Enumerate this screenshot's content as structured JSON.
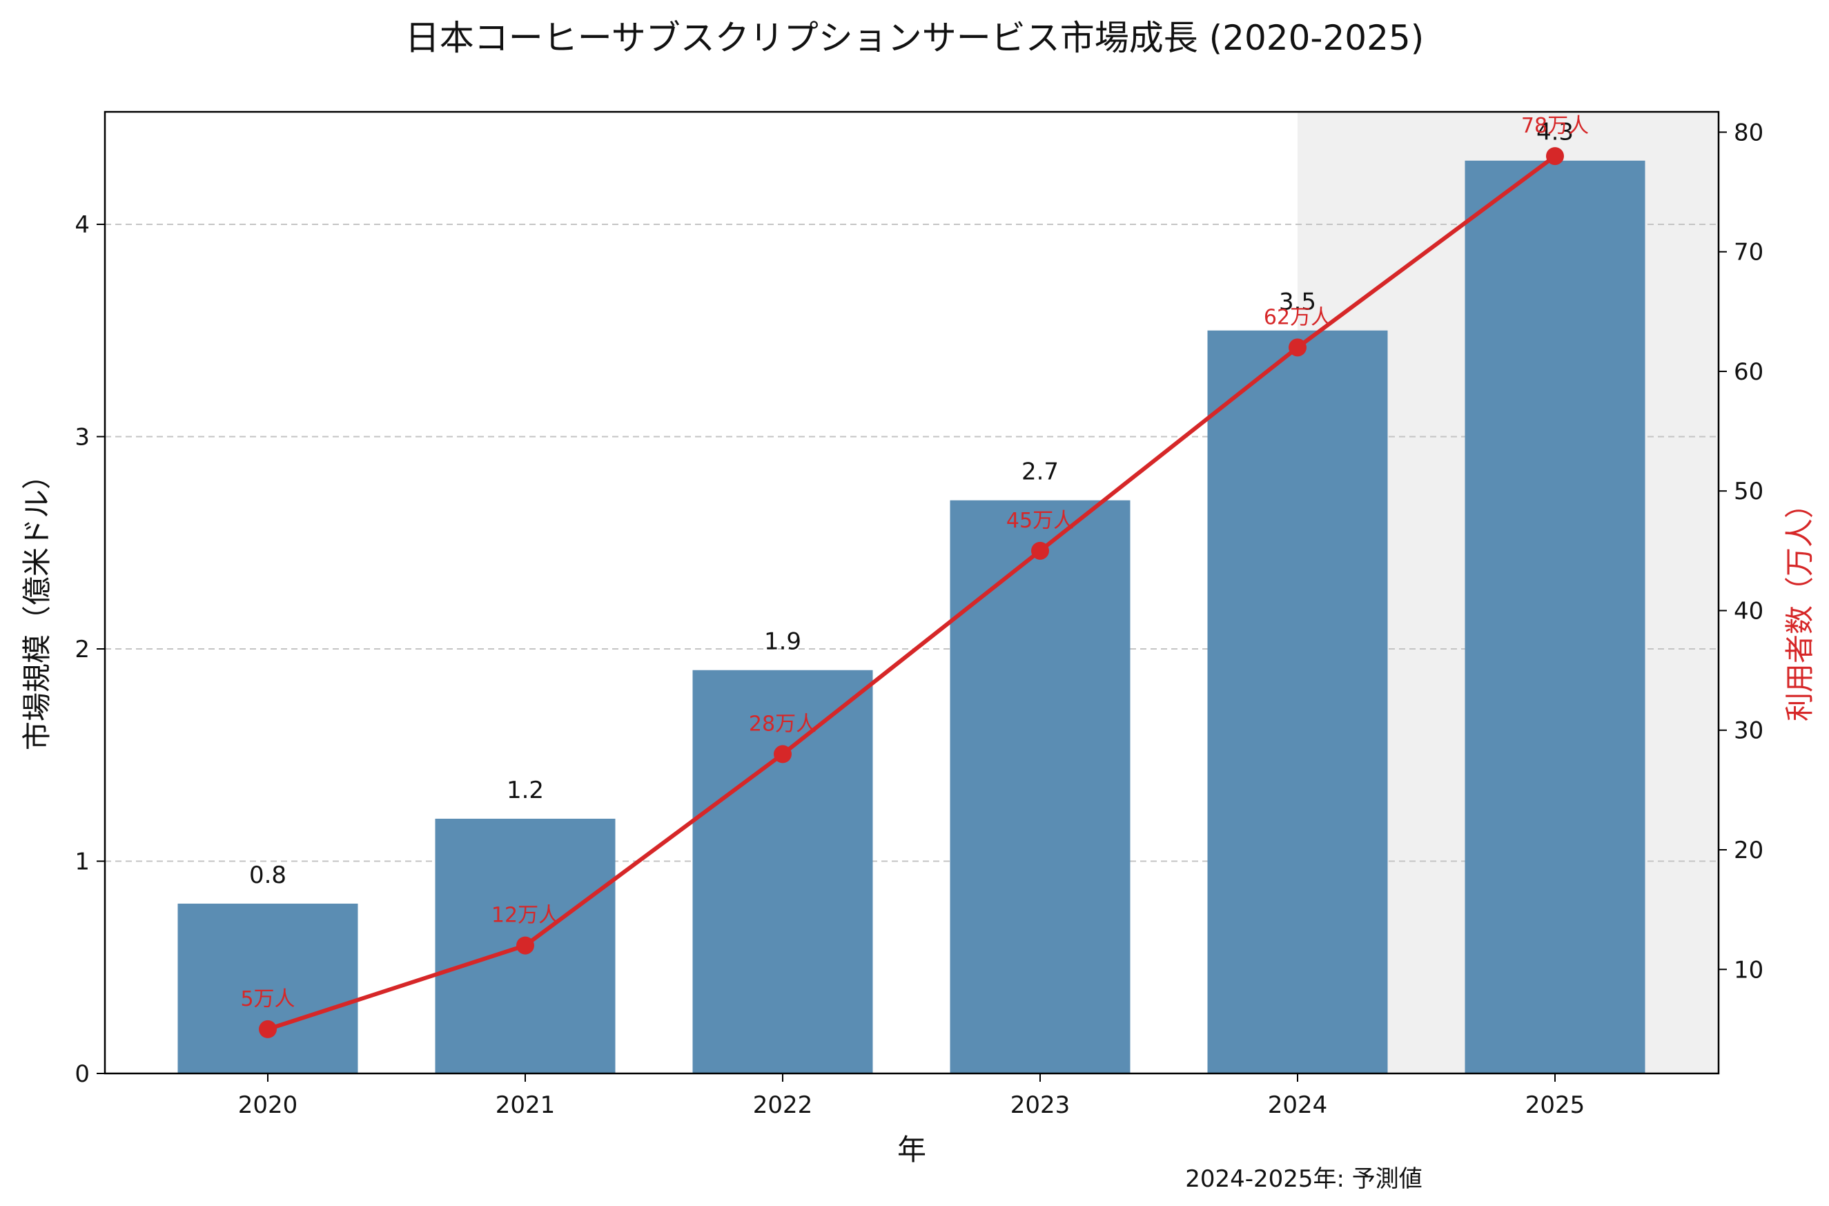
{
  "chart_data": {
    "type": "bar",
    "title": "日本コーヒーサブスクリプションサービス市場成長 (2020-2025)",
    "xlabel": "年",
    "ylabel": "市場規模（億米ドル）",
    "y2label": "利用者数（万人）",
    "categories": [
      "2020",
      "2021",
      "2022",
      "2023",
      "2024",
      "2025"
    ],
    "ylim": [
      0,
      4.53
    ],
    "y2lim": [
      1.3,
      81.7
    ],
    "yticks": [
      0,
      1,
      2,
      3,
      4
    ],
    "y2ticks": [
      10,
      20,
      30,
      40,
      50,
      60,
      70,
      80
    ],
    "grid": "horizontal dashed",
    "series": [
      {
        "type": "bar",
        "axis": "left",
        "color": "#5b8db3",
        "values": [
          0.8,
          1.2,
          1.9,
          2.7,
          3.5,
          4.3
        ],
        "labels": [
          "0.8",
          "1.2",
          "1.9",
          "2.7",
          "3.5",
          "4.3"
        ]
      },
      {
        "type": "line",
        "axis": "right",
        "color": "#d62728",
        "values": [
          5,
          12,
          28,
          45,
          62,
          78
        ],
        "labels": [
          "5万人",
          "12万人",
          "28万人",
          "45万人",
          "62万人",
          "78万人"
        ]
      }
    ],
    "forecast_shade": {
      "from": "2024",
      "to": "2025",
      "color": "#f0f0f0"
    },
    "note": "2024-2025年: 予測値"
  }
}
